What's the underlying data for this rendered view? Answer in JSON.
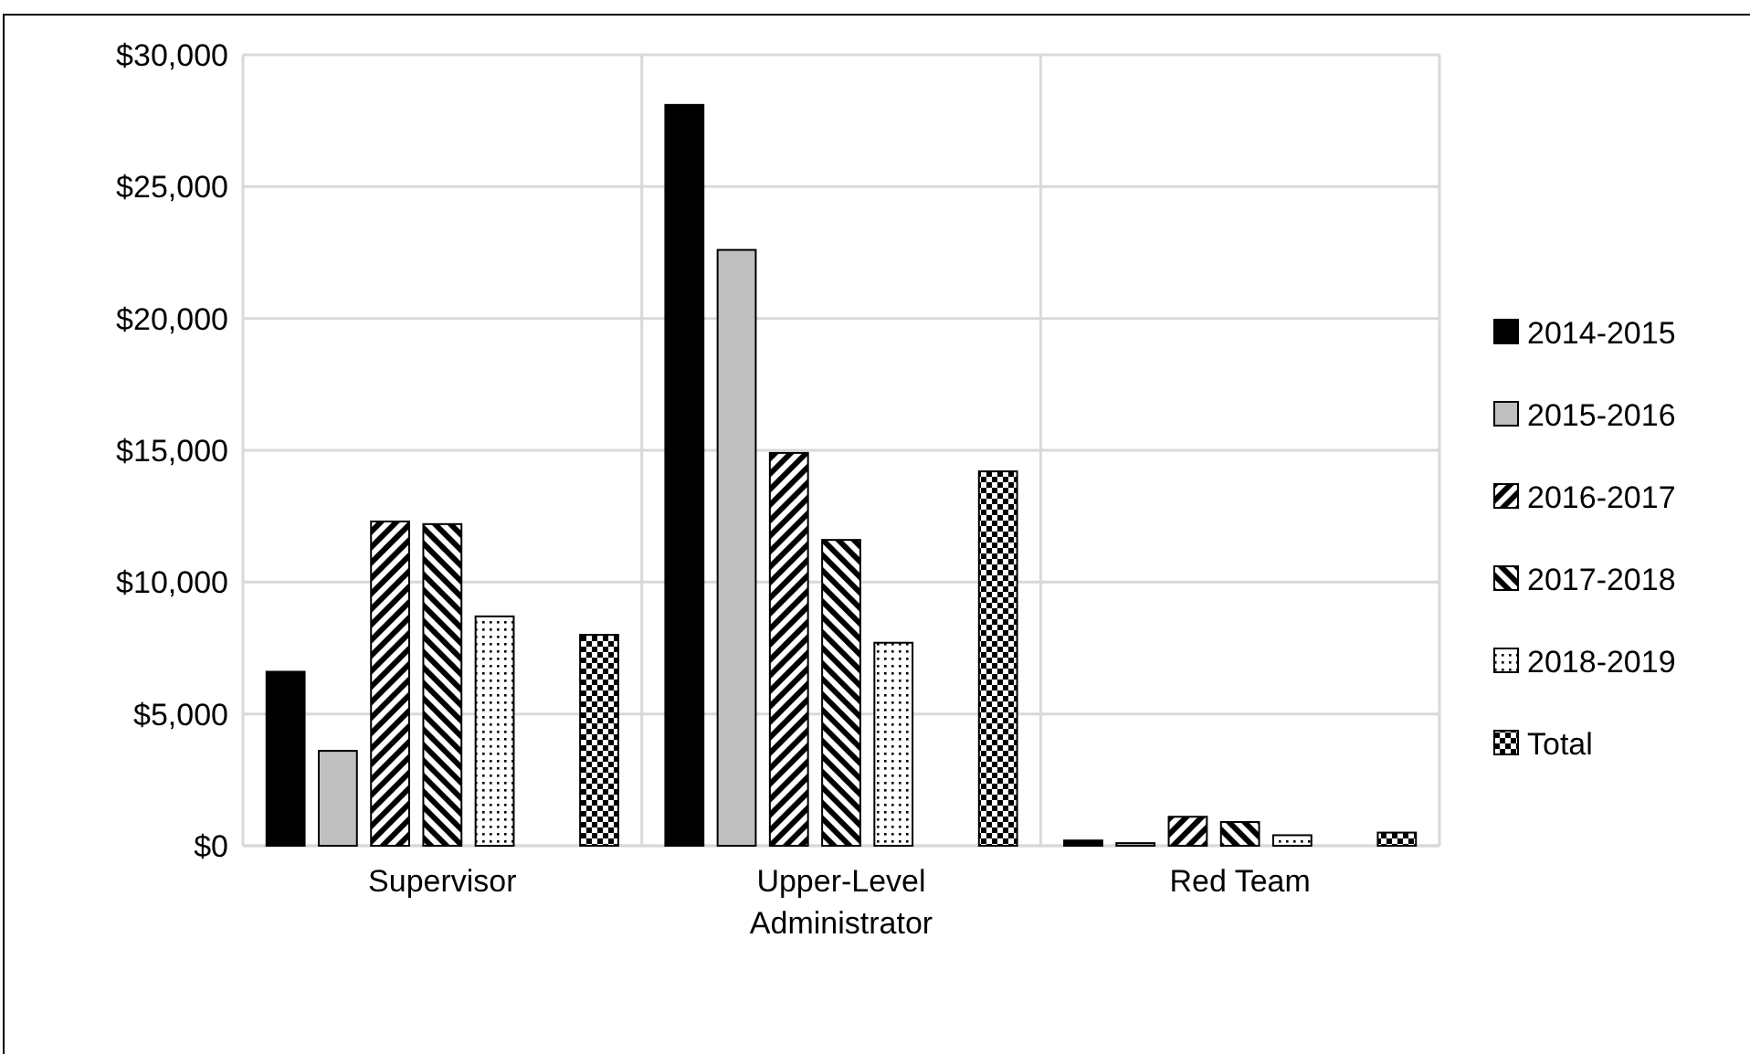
{
  "chart_data": {
    "type": "bar",
    "categories": [
      "Supervisor",
      "Upper-Level Administrator",
      "Red Team"
    ],
    "series": [
      {
        "name": "2014-2015",
        "color": "#000000",
        "values": [
          6600,
          28100,
          200
        ]
      },
      {
        "name": "2015-2016",
        "color": "#bfbfbf",
        "values": [
          3600,
          22600,
          100
        ]
      },
      {
        "name": "2016-2017",
        "color": "#000000",
        "values": [
          12300,
          14900,
          1100
        ]
      },
      {
        "name": "2017-2018",
        "color": "#000000",
        "values": [
          12200,
          11600,
          900
        ]
      },
      {
        "name": "2018-2019",
        "color": "#000000",
        "values": [
          8700,
          7700,
          400
        ]
      },
      {
        "values": [
          null,
          null,
          null
        ]
      },
      {
        "name": "Total",
        "color": "#000000",
        "values": [
          8000,
          14200,
          500
        ]
      }
    ],
    "ylim": [
      0,
      30000
    ],
    "yticks": [
      {
        "value": 0,
        "label": "$0"
      },
      {
        "value": 5000,
        "label": "$5,000"
      },
      {
        "value": 10000,
        "label": "$10,000"
      },
      {
        "value": 15000,
        "label": "$15,000"
      },
      {
        "value": 20000,
        "label": "$20,000"
      },
      {
        "value": 25000,
        "label": "$25,000"
      },
      {
        "value": 30000,
        "label": "$30,000"
      }
    ],
    "grid": true,
    "legend": "right"
  }
}
